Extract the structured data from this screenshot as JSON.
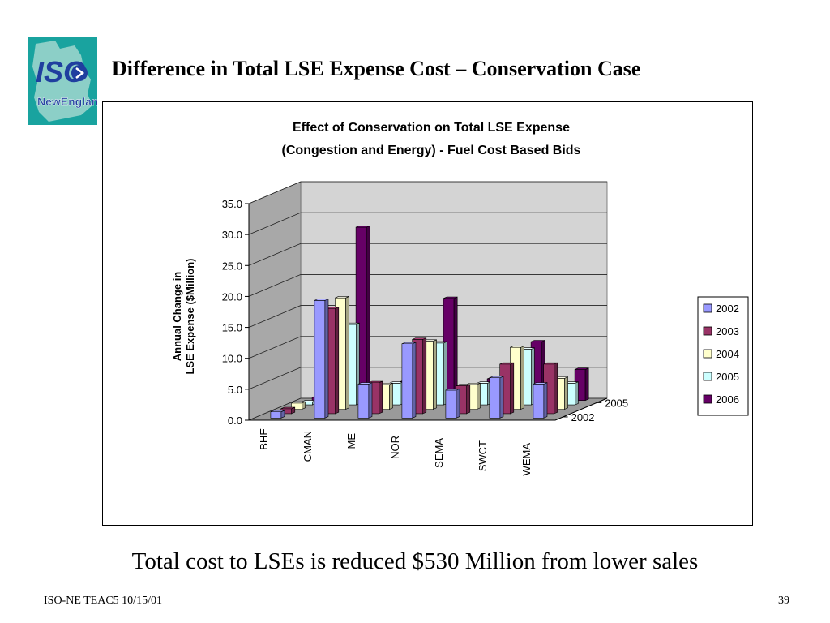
{
  "slide": {
    "title": "Difference in Total LSE Expense Cost – Conservation Case",
    "subtitle": "Total cost to LSEs is reduced $530 Million from lower sales",
    "footer_left": "ISO-NE TEAC5 10/15/01",
    "page_number": "39"
  },
  "logo": {
    "text_top": "ISO",
    "text_bottom": "NewEngland",
    "colors": {
      "background": "#19a39f",
      "map": "#8ccfc7",
      "text": "#1f3f9f",
      "accent": "#ffffff"
    }
  },
  "chart_data": {
    "type": "bar",
    "style": "3d-clustered-depth",
    "title_line1": "Effect of Conservation on Total LSE Expense",
    "title_line2": "(Congestion and Energy) - Fuel Cost Based Bids",
    "ylabel_line1": "Annual Change in",
    "ylabel_line2": "LSE Expense ($Million)",
    "xlabel": "",
    "categories": [
      "BHE",
      "CMAN",
      "ME",
      "NOR",
      "SEMA",
      "SWCT",
      "WEMA"
    ],
    "depth_tick_labels": [
      "2005",
      "2002"
    ],
    "ylim": [
      0,
      35
    ],
    "yticks": [
      "35.0",
      "30.0",
      "25.0",
      "20.0",
      "15.0",
      "10.0",
      "5.0",
      "0.0"
    ],
    "grid": true,
    "legend_position": "right",
    "series": [
      {
        "name": "2002",
        "color": "#9999ff",
        "values": [
          1.0,
          19.0,
          5.5,
          12.0,
          4.5,
          6.5,
          5.5
        ]
      },
      {
        "name": "2003",
        "color": "#993366",
        "values": [
          0.8,
          17.0,
          5.0,
          12.0,
          4.5,
          8.0,
          8.0
        ]
      },
      {
        "name": "2004",
        "color": "#ffffcc",
        "values": [
          1.0,
          18.0,
          4.0,
          11.0,
          4.0,
          10.0,
          5.0
        ]
      },
      {
        "name": "2005",
        "color": "#ccffff",
        "values": [
          0.5,
          13.0,
          3.5,
          10.0,
          3.5,
          9.0,
          3.5
        ]
      },
      {
        "name": "2006",
        "color": "#660066",
        "values": [
          0.5,
          28.0,
          3.0,
          16.5,
          3.5,
          9.5,
          5.0
        ]
      }
    ]
  }
}
